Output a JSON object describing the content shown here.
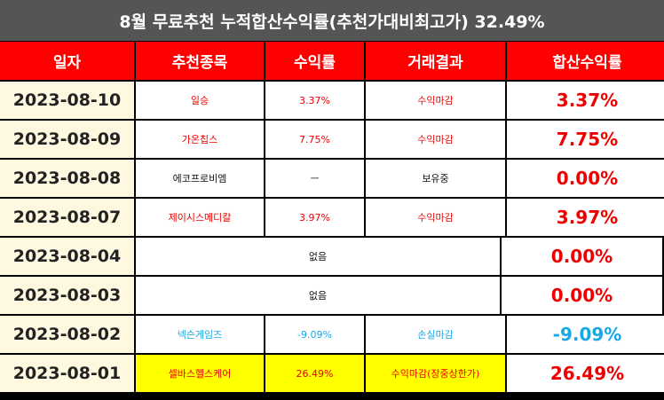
{
  "title": "8월 무료추천 누적합산수익률(추천가대비최고가) 32.49%",
  "headers": [
    "일자",
    "추천종목",
    "수익률",
    "거래결과",
    "합산수익률"
  ],
  "colors": {
    "title_bg": "#555555",
    "header_bg": "#ff0000",
    "date_bg": "#fff8e1",
    "positive": "#ee0000",
    "negative": "#18a8e8",
    "highlight": "#ffff00"
  },
  "rows": [
    {
      "date": "2023-08-10",
      "stock": "일승",
      "return": "3.37%",
      "result": "수익마감",
      "total": "3.37%"
    },
    {
      "date": "2023-08-09",
      "stock": "가온칩스",
      "return": "7.75%",
      "result": "수익마감",
      "total": "7.75%"
    },
    {
      "date": "2023-08-08",
      "stock": "에코프로비엠",
      "return": "ㅡ",
      "result": "보유중",
      "total": "0.00%"
    },
    {
      "date": "2023-08-07",
      "stock": "제이시스메디칼",
      "return": "3.97%",
      "result": "수익마감",
      "total": "3.97%"
    },
    {
      "date": "2023-08-04",
      "none": "없음",
      "total": "0.00%"
    },
    {
      "date": "2023-08-03",
      "none": "없음",
      "total": "0.00%"
    },
    {
      "date": "2023-08-02",
      "stock": "넥슨게임즈",
      "return": "-9.09%",
      "result": "손실마감",
      "total": "-9.09%"
    },
    {
      "date": "2023-08-01",
      "stock": "셀바스헬스케어",
      "return": "26.49%",
      "result": "수익마감(장중상한가)",
      "total": "26.49%"
    }
  ]
}
